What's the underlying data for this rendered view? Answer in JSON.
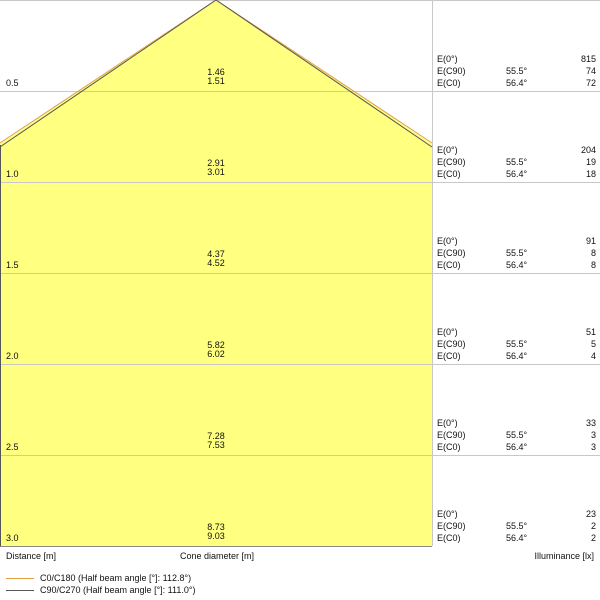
{
  "colors": {
    "fill": "#ffff80",
    "c0": "#e0a040",
    "c90": "#555555",
    "grid": "#c8c8c8",
    "grid_in": "#d8d890"
  },
  "rows": [
    {
      "distance": "0.5",
      "cone": [
        "1.46",
        "1.51"
      ],
      "e0": "815",
      "ec90": "74",
      "ec0": "72",
      "ang90": "55.5°",
      "ang0": "56.4°"
    },
    {
      "distance": "1.0",
      "cone": [
        "2.91",
        "3.01"
      ],
      "e0": "204",
      "ec90": "19",
      "ec0": "18",
      "ang90": "55.5°",
      "ang0": "56.4°"
    },
    {
      "distance": "1.5",
      "cone": [
        "4.37",
        "4.52"
      ],
      "e0": "91",
      "ec90": "8",
      "ec0": "8",
      "ang90": "55.5°",
      "ang0": "56.4°"
    },
    {
      "distance": "2.0",
      "cone": [
        "5.82",
        "6.02"
      ],
      "e0": "51",
      "ec90": "5",
      "ec0": "4",
      "ang90": "55.5°",
      "ang0": "56.4°"
    },
    {
      "distance": "2.5",
      "cone": [
        "7.28",
        "7.53"
      ],
      "e0": "33",
      "ec90": "3",
      "ec0": "3",
      "ang90": "55.5°",
      "ang0": "56.4°"
    },
    {
      "distance": "3.0",
      "cone": [
        "8.73",
        "9.03"
      ],
      "e0": "23",
      "ec90": "2",
      "ec0": "2",
      "ang90": "55.5°",
      "ang0": "56.4°"
    }
  ],
  "labels": {
    "e0": "E(0°)",
    "ec90": "E(C90)",
    "ec0": "E(C0)"
  },
  "axis": {
    "distance": "Distance [m]",
    "cone": "Cone diameter [m]",
    "illuminance": "Illuminance [lx]"
  },
  "legend": [
    {
      "label": "C0/C180 (Half beam angle [°]: 112.8°)"
    },
    {
      "label": "C90/C270 (Half beam angle [°]: 111.0°)"
    }
  ]
}
